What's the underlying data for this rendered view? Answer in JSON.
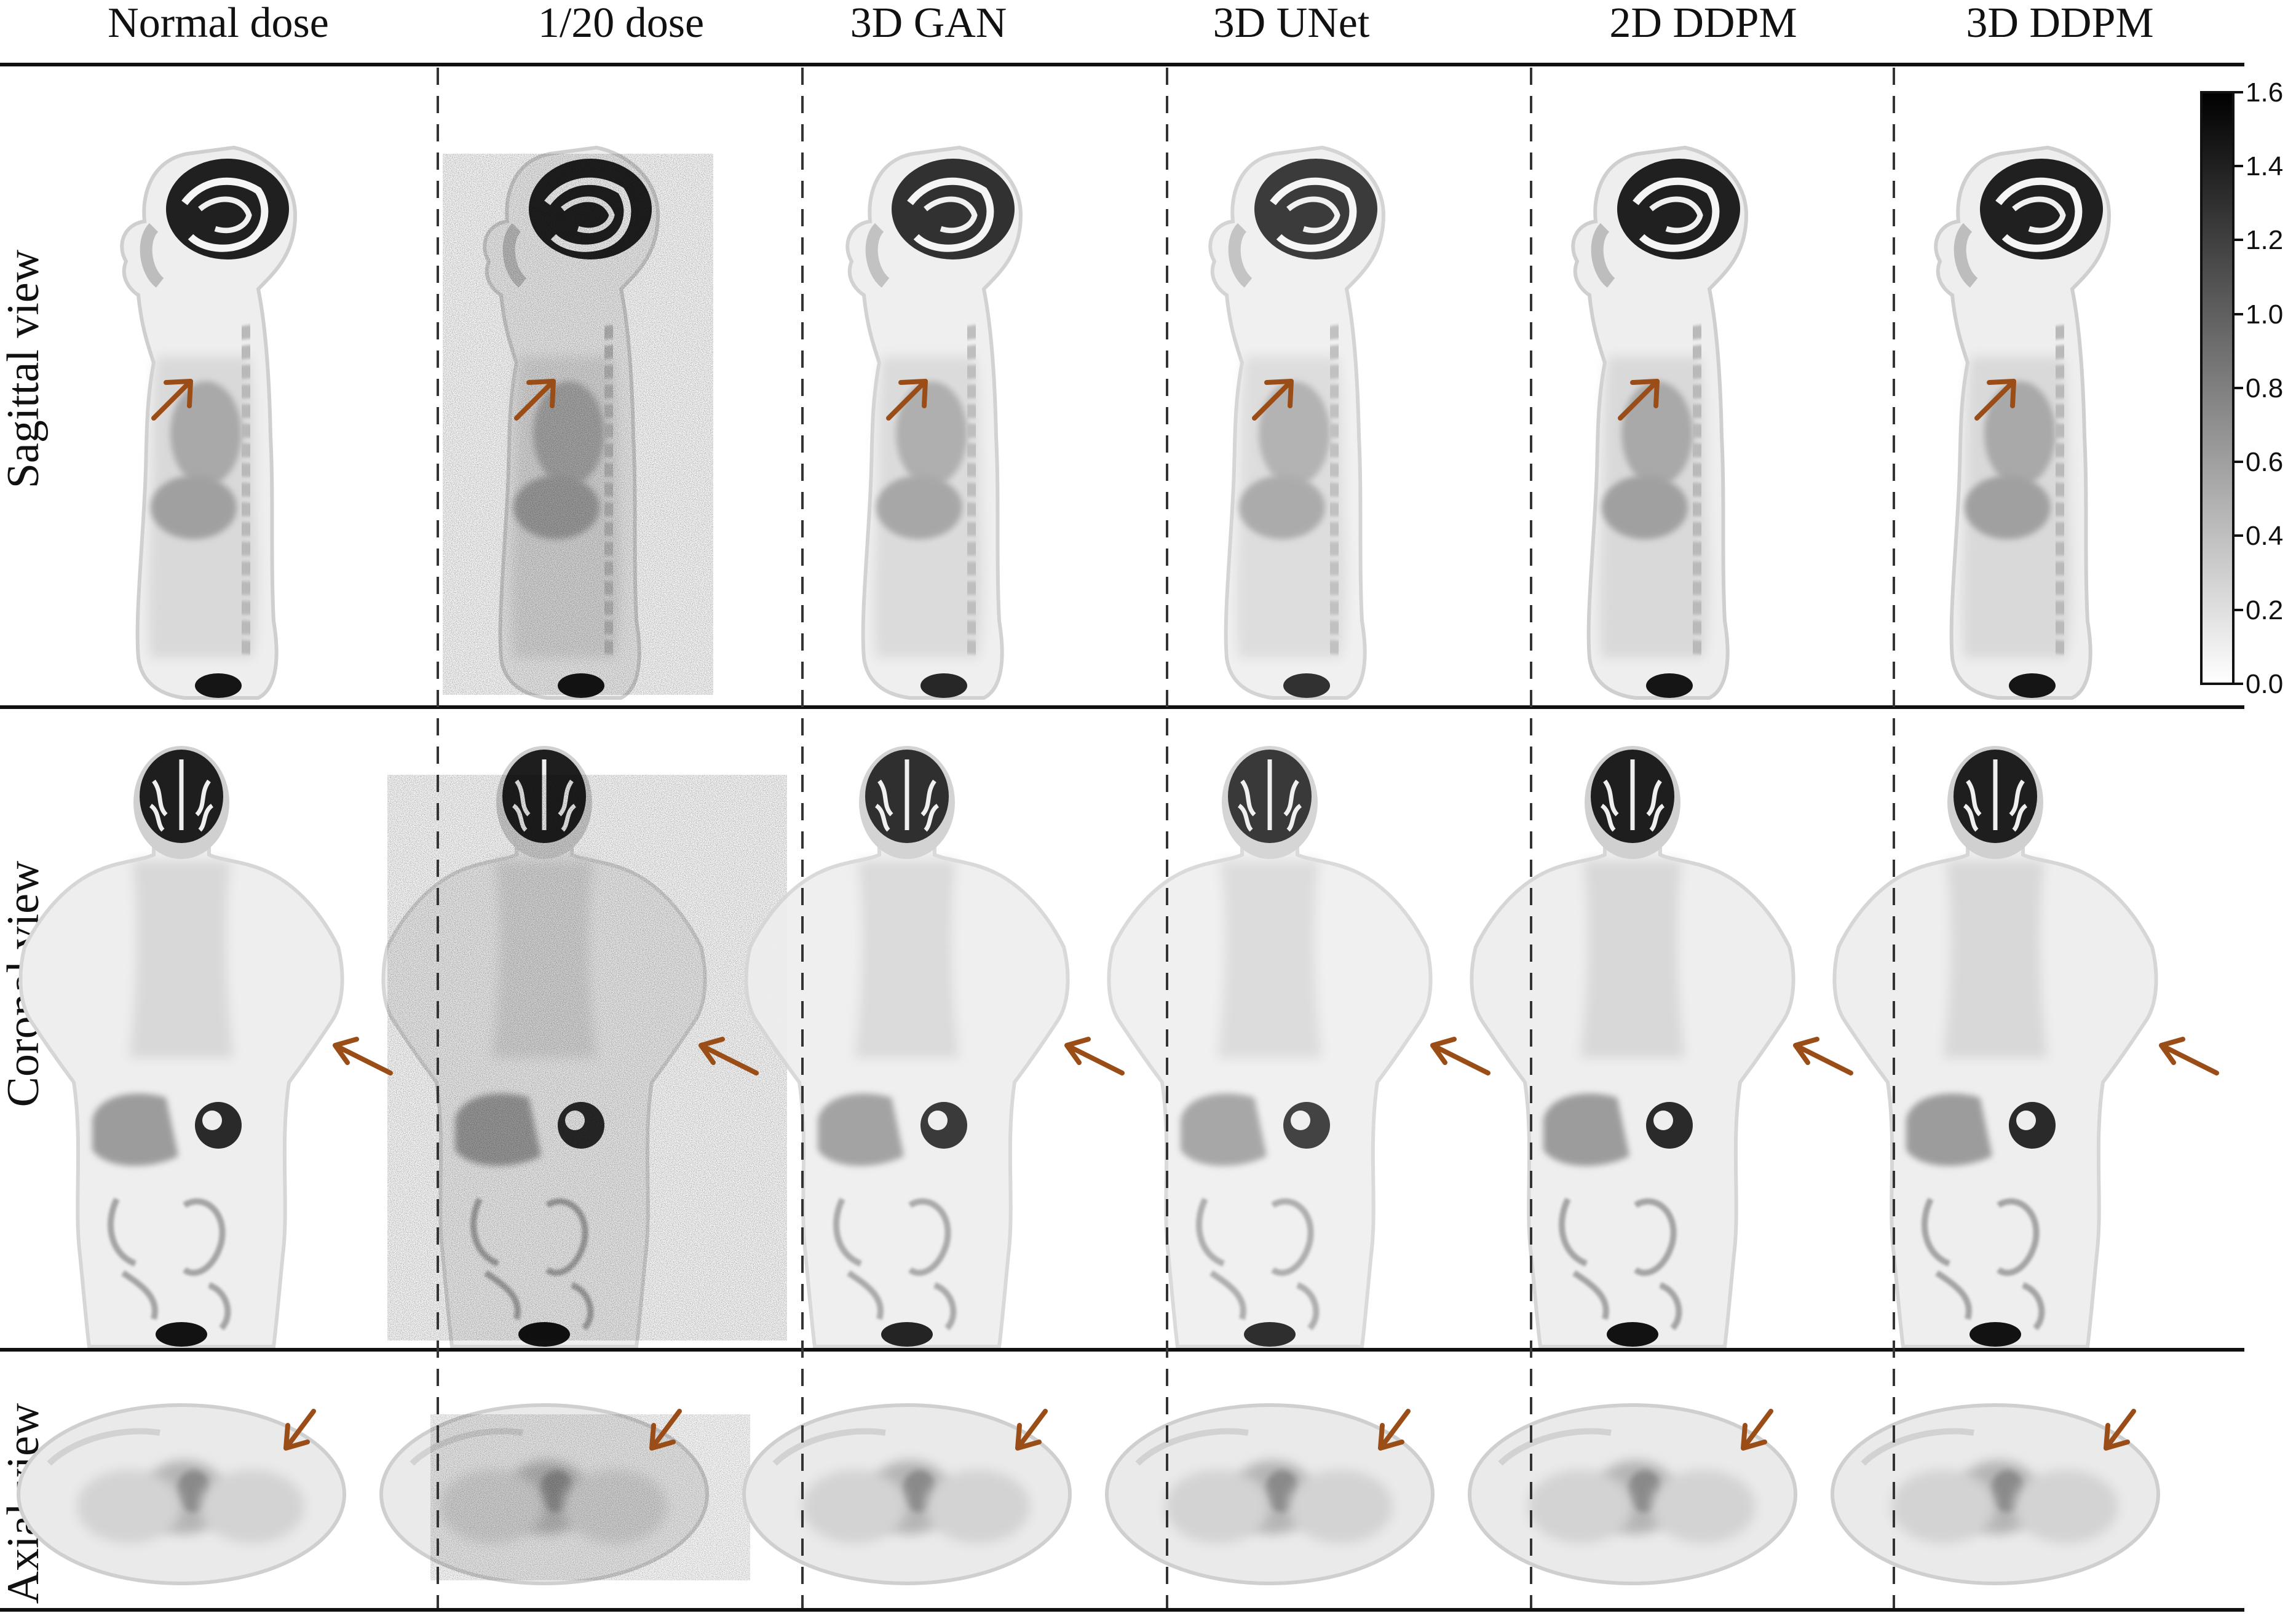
{
  "columns": [
    {
      "label": "Normal dose"
    },
    {
      "label": "1/20 dose"
    },
    {
      "label": "3D GAN"
    },
    {
      "label": "3D UNet"
    },
    {
      "label": "2D DDPM"
    },
    {
      "label": "3D DDPM"
    }
  ],
  "rows": [
    {
      "label": "Sagittal view"
    },
    {
      "label": "Coronal view"
    },
    {
      "label": "Axial view"
    }
  ],
  "colorbar": {
    "ticks": [
      "1.6",
      "1.4",
      "1.2",
      "1.0",
      "0.8",
      "0.6",
      "0.4",
      "0.2",
      "0.0"
    ]
  },
  "colors": {
    "arrow": "#9a4d17",
    "divider": "#111111",
    "tissue": "#b0b0b0",
    "organ": "#7a7a7a",
    "hot": "#111111"
  }
}
